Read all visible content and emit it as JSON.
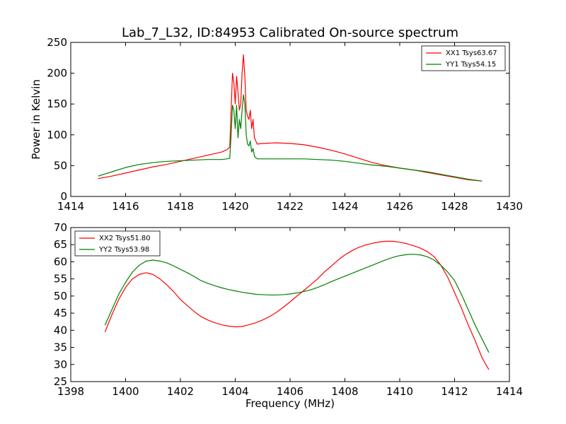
{
  "chart_data": [
    {
      "type": "line",
      "title": "Lab_7_L32, ID:84953 Calibrated On-source spectrum",
      "ylabel": "Power in Kelvin",
      "xlabel": "",
      "xlim": [
        1414,
        1430
      ],
      "ylim": [
        0,
        250
      ],
      "xticks": [
        1414,
        1416,
        1418,
        1420,
        1422,
        1424,
        1426,
        1428,
        1430
      ],
      "yticks": [
        0,
        50,
        100,
        150,
        200,
        250
      ],
      "legend_position": "top-right",
      "series": [
        {
          "name": "XX1 Tsys63.67",
          "color": "#ff0000",
          "x": [
            1415.0,
            1415.5,
            1416.0,
            1416.5,
            1417.0,
            1417.5,
            1418.0,
            1418.5,
            1419.0,
            1419.5,
            1419.7,
            1419.8,
            1419.85,
            1419.9,
            1419.95,
            1420.0,
            1420.05,
            1420.1,
            1420.15,
            1420.2,
            1420.25,
            1420.3,
            1420.35,
            1420.4,
            1420.45,
            1420.5,
            1420.55,
            1420.6,
            1420.65,
            1420.7,
            1420.8,
            1421.0,
            1421.5,
            1422.0,
            1422.5,
            1423.0,
            1423.5,
            1424.0,
            1424.5,
            1425.0,
            1425.5,
            1426.0,
            1426.5,
            1427.0,
            1427.5,
            1428.0,
            1428.5,
            1429.0
          ],
          "y": [
            29,
            33,
            38,
            43,
            48,
            52,
            57,
            62,
            67,
            72,
            76,
            80,
            140,
            200,
            185,
            150,
            195,
            170,
            140,
            150,
            200,
            230,
            195,
            140,
            130,
            125,
            140,
            110,
            125,
            95,
            85,
            86,
            87,
            86,
            84,
            80,
            75,
            69,
            62,
            55,
            50,
            46,
            43,
            39,
            35,
            31,
            27,
            25
          ]
        },
        {
          "name": "YY1 Tsys54.15",
          "color": "#008000",
          "x": [
            1415.0,
            1415.5,
            1416.0,
            1416.5,
            1417.0,
            1417.5,
            1418.0,
            1418.5,
            1419.0,
            1419.5,
            1419.7,
            1419.8,
            1419.85,
            1419.9,
            1419.95,
            1420.0,
            1420.05,
            1420.1,
            1420.15,
            1420.2,
            1420.25,
            1420.3,
            1420.35,
            1420.4,
            1420.45,
            1420.5,
            1420.55,
            1420.6,
            1420.65,
            1420.7,
            1420.8,
            1421.0,
            1421.5,
            1422.0,
            1422.5,
            1423.0,
            1423.5,
            1424.0,
            1424.5,
            1425.0,
            1425.5,
            1426.0,
            1426.5,
            1427.0,
            1427.5,
            1428.0,
            1428.5,
            1429.0
          ],
          "y": [
            33,
            40,
            47,
            52,
            55,
            57,
            58,
            59,
            60,
            60,
            61,
            62,
            100,
            148,
            140,
            110,
            148,
            95,
            125,
            110,
            140,
            165,
            150,
            100,
            85,
            82,
            90,
            72,
            78,
            65,
            61,
            61,
            61,
            61,
            61,
            60,
            59,
            57,
            54,
            51,
            49,
            46,
            43,
            40,
            36,
            32,
            28,
            25
          ]
        }
      ]
    },
    {
      "type": "line",
      "title": "",
      "xlabel": "Frequency (MHz)",
      "ylabel": "",
      "xlim": [
        1398,
        1414
      ],
      "ylim": [
        25,
        70
      ],
      "xticks": [
        1398,
        1400,
        1402,
        1404,
        1406,
        1408,
        1410,
        1412,
        1414
      ],
      "yticks": [
        25,
        30,
        35,
        40,
        45,
        50,
        55,
        60,
        65,
        70
      ],
      "legend_position": "top-left",
      "series": [
        {
          "name": "XX2 Tsys51.80",
          "color": "#ff0000",
          "x": [
            1399.25,
            1399.5,
            1399.75,
            1400.0,
            1400.25,
            1400.5,
            1400.75,
            1401.0,
            1401.25,
            1401.5,
            1401.75,
            1402.0,
            1402.25,
            1402.5,
            1402.75,
            1403.0,
            1403.25,
            1403.5,
            1403.75,
            1404.0,
            1404.25,
            1404.5,
            1404.75,
            1405.0,
            1405.25,
            1405.5,
            1405.75,
            1406.0,
            1406.25,
            1406.5,
            1406.75,
            1407.0,
            1407.25,
            1407.5,
            1407.75,
            1408.0,
            1408.25,
            1408.5,
            1408.75,
            1409.0,
            1409.25,
            1409.5,
            1409.75,
            1410.0,
            1410.25,
            1410.5,
            1410.75,
            1411.0,
            1411.25,
            1411.5,
            1411.75,
            1412.0,
            1412.25,
            1412.5,
            1412.75,
            1413.0,
            1413.25
          ],
          "y": [
            39.5,
            44.5,
            49,
            52.5,
            55,
            56.3,
            56.8,
            56.3,
            55,
            53.3,
            51.3,
            49,
            47.2,
            45.5,
            44,
            43,
            42.2,
            41.6,
            41.2,
            41,
            41.1,
            41.6,
            42.2,
            43,
            44,
            45.2,
            46.7,
            48.3,
            50,
            51.6,
            53.3,
            55,
            57,
            58.7,
            60.5,
            62,
            63.2,
            64.2,
            64.9,
            65.4,
            65.8,
            66,
            66,
            65.7,
            65.3,
            64.7,
            64,
            63,
            61.5,
            59,
            55.5,
            51,
            46.5,
            41.5,
            37,
            32,
            28.5
          ]
        },
        {
          "name": "YY2 Tsys53.98",
          "color": "#008000",
          "x": [
            1399.25,
            1399.5,
            1399.75,
            1400.0,
            1400.25,
            1400.5,
            1400.75,
            1401.0,
            1401.25,
            1401.5,
            1401.75,
            1402.0,
            1402.25,
            1402.5,
            1402.75,
            1403.0,
            1403.25,
            1403.5,
            1403.75,
            1404.0,
            1404.25,
            1404.5,
            1404.75,
            1405.0,
            1405.25,
            1405.5,
            1405.75,
            1406.0,
            1406.25,
            1406.5,
            1406.75,
            1407.0,
            1407.25,
            1407.5,
            1407.75,
            1408.0,
            1408.25,
            1408.5,
            1408.75,
            1409.0,
            1409.25,
            1409.5,
            1409.75,
            1410.0,
            1410.25,
            1410.5,
            1410.75,
            1411.0,
            1411.25,
            1411.5,
            1411.75,
            1412.0,
            1412.25,
            1412.5,
            1412.75,
            1413.0,
            1413.25
          ],
          "y": [
            41.5,
            46,
            50.5,
            54,
            57,
            59,
            60.2,
            60.5,
            60.2,
            59.7,
            58.8,
            57.8,
            56.8,
            55.7,
            54.5,
            53.7,
            53,
            52.4,
            51.9,
            51.5,
            51.1,
            50.8,
            50.5,
            50.4,
            50.3,
            50.3,
            50.4,
            50.6,
            50.9,
            51.3,
            51.8,
            52.5,
            53.3,
            54.2,
            55,
            55.8,
            56.6,
            57.4,
            58.2,
            59,
            59.8,
            60.6,
            61.3,
            61.8,
            62.1,
            62.2,
            62,
            61.5,
            60.5,
            59,
            57,
            54.5,
            50.5,
            46,
            41.5,
            37.5,
            33.5
          ]
        }
      ]
    }
  ]
}
